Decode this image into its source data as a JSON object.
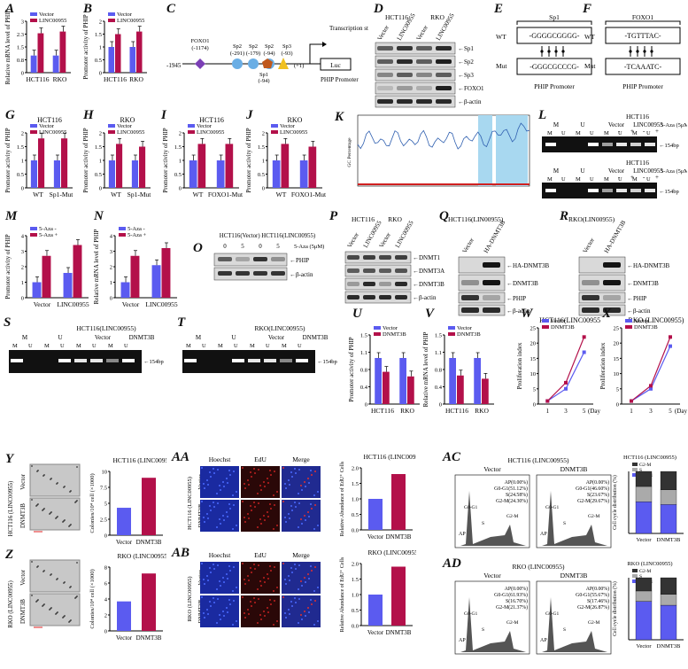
{
  "panels": {
    "A": {
      "label": "A",
      "ylabel": "Relative mRNA level of PHIP",
      "categories": [
        "HCT116",
        "RKO"
      ],
      "legend": [
        "Vector",
        "LINC00955"
      ],
      "values": [
        [
          1,
          2.3
        ],
        [
          1,
          2.4
        ]
      ],
      "ylim": [
        0,
        3
      ],
      "ticks": [
        "0",
        "1",
        "2",
        "3"
      ]
    },
    "B": {
      "label": "B",
      "ylabel": "Promoter activity of PHIP",
      "categories": [
        "HCT116",
        "RKO"
      ],
      "legend": [
        "Vector",
        "LINC00955"
      ],
      "values": [
        [
          1,
          1.5
        ],
        [
          1,
          1.6
        ]
      ],
      "ylim": [
        0,
        2
      ],
      "ticks": [
        "0.0",
        "0.5",
        "1.0",
        "1.5",
        "2.0"
      ]
    },
    "C": {
      "label": "C",
      "start": "-1945",
      "factors": [
        "FOXO1",
        "Sp2",
        "Sp2",
        "Sp2",
        "Sp3",
        "Sp1"
      ],
      "positions": [
        "(-1174)",
        "(-291)",
        "(-179)",
        "(-94)",
        "(-93)",
        "(-94)"
      ],
      "tss": "Transcription start site",
      "luc": "Luc",
      "promoter": "PHIP Promoter",
      "plus1": "(+1)"
    },
    "D": {
      "label": "D",
      "cells": [
        "HCT116",
        "RKO"
      ],
      "lanes": [
        "Vector",
        "LINC00955",
        "Vector",
        "LINC00955"
      ],
      "bands": [
        "Sp1",
        "Sp2",
        "Sp3",
        "FOXO1",
        "β-actin"
      ]
    },
    "E": {
      "label": "E",
      "title": "Sp1",
      "wt": "WT",
      "mut": "Mut",
      "wt_seq": "-GGGGCGGGG-",
      "mut_seq": "-GGGCGCCCG-",
      "caption": "PHIP Promoter"
    },
    "F": {
      "label": "F",
      "title": "FOXO1",
      "wt": "WT",
      "mut": "Mut",
      "wt_seq": "-TGTTTAC-",
      "mut_seq": "-TCAAATC-",
      "caption": "PHIP Promoter"
    },
    "G": {
      "label": "G",
      "title": "HCT116",
      "ylabel": "Promoter activity of PHIP",
      "categories": [
        "WT",
        "Sp1-Mut"
      ],
      "legend": [
        "Vector",
        "LINC00955"
      ],
      "values": [
        [
          1,
          1.8
        ],
        [
          1,
          1.8
        ]
      ],
      "ylim": [
        0,
        2
      ]
    },
    "H": {
      "label": "H",
      "title": "RKO",
      "ylabel": "Promoter activity of PHIP",
      "categories": [
        "WT",
        "Sp1-Mut"
      ],
      "legend": [
        "Vector",
        "LINC00955"
      ],
      "values": [
        [
          1,
          1.6
        ],
        [
          1,
          1.5
        ]
      ],
      "ylim": [
        0,
        2
      ]
    },
    "I": {
      "label": "I",
      "title": "HCT116",
      "ylabel": "Promoter activity of PHIP",
      "categories": [
        "WT",
        "FOXO1-Mut"
      ],
      "legend": [
        "Vector",
        "LINC00955"
      ],
      "values": [
        [
          1,
          1.6
        ],
        [
          1,
          1.6
        ]
      ],
      "ylim": [
        0,
        2
      ]
    },
    "J": {
      "label": "J",
      "title": "RKO",
      "ylabel": "Promoter activity of PHIP",
      "categories": [
        "WT",
        "FOXO1-Mut"
      ],
      "legend": [
        "Vector",
        "LINC00955"
      ],
      "values": [
        [
          1,
          1.6
        ],
        [
          1,
          1.5
        ]
      ],
      "ylim": [
        0,
        2
      ]
    },
    "K": {
      "label": "K",
      "ylabel": "GC Percentage"
    },
    "L": {
      "label": "L",
      "cell": "HCT116",
      "treat": "5-Aza (5μM)",
      "groups": [
        "M",
        "U",
        "Vector",
        "LINC00955"
      ],
      "mu": [
        "M",
        "U"
      ],
      "size": "154bp",
      "signs": [
        "-",
        "+",
        "-",
        "+"
      ]
    },
    "M": {
      "label": "M",
      "ylabel": "Promoter activity of PHIP",
      "categories": [
        "Vector",
        "LINC00955"
      ],
      "legend": [
        "5-Aza -",
        "5-Aza +"
      ],
      "values": [
        [
          1,
          2.7
        ],
        [
          1.6,
          3.4
        ]
      ],
      "ylim": [
        0,
        4
      ]
    },
    "N": {
      "label": "N",
      "ylabel": "Relative mRNA level of PHIP",
      "categories": [
        "Vector",
        "LINC00955"
      ],
      "legend": [
        "5-Aza -",
        "5-Aza +"
      ],
      "values": [
        [
          1,
          2.7
        ],
        [
          2.1,
          3.2
        ]
      ],
      "ylim": [
        0,
        4
      ]
    },
    "O": {
      "label": "O",
      "header": "HCT116(Vector) HCT116(LINC00955)",
      "doses": [
        "0",
        "5",
        "0",
        "5"
      ],
      "treat": "5-Aza (5μM)",
      "bands": [
        "PHIP",
        "β-actin"
      ]
    },
    "P": {
      "label": "P",
      "cells": [
        "HCT116",
        "RKO"
      ],
      "lanes": [
        "Vector",
        "LINC00955",
        "Vector",
        "LINC00955"
      ],
      "bands": [
        "DNMT1",
        "DNMT3A",
        "DNMT3B",
        "β-actin"
      ]
    },
    "Q": {
      "label": "Q",
      "title": "HCT116(LIN00955)",
      "lanes": [
        "Vector",
        "HA-DNMT3B"
      ],
      "bands": [
        "HA-DNMT3B",
        "DNMT3B",
        "PHIP",
        "β-actin"
      ]
    },
    "R": {
      "label": "R",
      "title": "RKO(LIN00955)",
      "lanes": [
        "Vector",
        "HA-DNMT3B"
      ],
      "bands": [
        "HA-DNMT3B",
        "DNMT3B",
        "PHIP",
        "β-actin"
      ]
    },
    "S": {
      "label": "S",
      "title": "HCT116(LINC00955)",
      "groups": [
        "M",
        "U",
        "Vector",
        "DNMT3B"
      ],
      "size": "154bp"
    },
    "T": {
      "label": "T",
      "title": "RKO(LINC00955)",
      "groups": [
        "M",
        "U",
        "Vector",
        "DNMT3B"
      ],
      "size": "154bp"
    },
    "U": {
      "label": "U",
      "ylabel": "Promoter activity of PHIP",
      "categories": [
        "HCT116",
        "RKO"
      ],
      "legend": [
        "Vector",
        "DNMT3B"
      ],
      "values": [
        [
          1,
          0.7
        ],
        [
          1,
          0.6
        ]
      ],
      "ylim": [
        0,
        1.5
      ]
    },
    "V": {
      "label": "V",
      "ylabel": "Relative mRNA level of PHIP",
      "categories": [
        "HCT116",
        "RKO"
      ],
      "legend": [
        "Vector",
        "DNMT3B"
      ],
      "values": [
        [
          1,
          0.62
        ],
        [
          1,
          0.55
        ]
      ],
      "ylim": [
        0,
        1.5
      ]
    },
    "W": {
      "label": "W",
      "title": "HCT116(LINC00955)",
      "ylabel": "Proliferation index",
      "xlabel": "(Day)",
      "x": [
        "1",
        "3",
        "5"
      ],
      "legend": [
        "Vector",
        "DNMT3B"
      ],
      "series": [
        [
          1,
          5,
          17
        ],
        [
          1,
          7,
          22
        ]
      ],
      "ylim": [
        0,
        25
      ]
    },
    "X": {
      "label": "X",
      "title": "RKO (LINC00955)",
      "ylabel": "Proliferation index",
      "xlabel": "(Day)",
      "x": [
        "1",
        "3",
        "5"
      ],
      "legend": [
        "Vector",
        "DNMT3B"
      ],
      "series": [
        [
          1,
          5,
          19
        ],
        [
          1,
          6,
          22
        ]
      ],
      "ylim": [
        0,
        25
      ]
    },
    "Y": {
      "label": "Y",
      "title": "HCT116 (LINC00955)",
      "rows": [
        "Vector",
        "DNMT3B"
      ],
      "side": "HCT116 (LINC00955)",
      "ylabel": "Colonies/10⁴ cell (×1000)",
      "categories": [
        "Vector",
        "DNMT3B"
      ],
      "values": [
        4.3,
        9.0
      ],
      "ylim": [
        0,
        10
      ]
    },
    "Z": {
      "label": "Z",
      "title": "RKO (LINC00955)",
      "rows": [
        "Vector",
        "DNMT3B"
      ],
      "side": "RKO (LINC00955)",
      "ylabel": "Colonies/10⁴ cell (×1000)",
      "categories": [
        "Vector",
        "DNMT3B"
      ],
      "values": [
        3.7,
        7.2
      ],
      "ylim": [
        0,
        8
      ]
    },
    "AA": {
      "label": "AA",
      "cols": [
        "Hoechst",
        "EdU",
        "Merge"
      ],
      "rows": [
        "Vector",
        "DNMT3B"
      ],
      "side": "HCT116 (LINC00955)",
      "title": "HCT116 (LINC00955)",
      "ylabel": "Relative Abundance of EdU⁺ Cells",
      "categories": [
        "Vector",
        "DNMT3B"
      ],
      "values": [
        1,
        1.8
      ],
      "ylim": [
        0,
        2
      ]
    },
    "AB": {
      "label": "AB",
      "cols": [
        "Hoechst",
        "EdU",
        "Merge"
      ],
      "rows": [
        "Vector",
        "DNMT3B"
      ],
      "side": "RKO (LINC00955)",
      "title": "RKO (LINC00955)",
      "ylabel": "Relative Abundance of EdU⁺ Cells",
      "categories": [
        "Vector",
        "DNMT3B"
      ],
      "values": [
        1,
        1.9
      ],
      "ylim": [
        0,
        2
      ]
    },
    "AC": {
      "label": "AC",
      "title": "HCT116 (LINC00955)",
      "cols": [
        "Vector",
        "DNMT3B"
      ],
      "stats": [
        [
          "AP(0.00%)",
          "G0-G1(51.12%)",
          "S(24.58%)",
          "G2-M(24.30%)"
        ],
        [
          "AP(0.00%)",
          "G0-G1(46.60%)",
          "S(23.67%)",
          "G2-M(29.67%)"
        ]
      ],
      "ylabel": "Cell cycle distribution (%)",
      "legend": [
        "G2-M",
        "S",
        "G0-G1"
      ],
      "categories": [
        "Vector",
        "DNMT3B"
      ]
    },
    "AD": {
      "label": "AD",
      "title": "RKO (LINC00955)",
      "cols": [
        "Vector",
        "DNMT3B"
      ],
      "stats": [
        [
          "AP(0.00%)",
          "G0-G1(61.93%)",
          "S(16.70%)",
          "G2-M(21.37%)"
        ],
        [
          "AP(0.00%)",
          "G0-G1(55.67%)",
          "S(17.46%)",
          "G2-M(26.87%)"
        ]
      ],
      "ylabel": "Cell cycle distribution (%)",
      "legend": [
        "G2-M",
        "S",
        "G0-G1"
      ],
      "categories": [
        "Vector",
        "DNMT3B"
      ]
    }
  },
  "colors": {
    "blue": "#5b5bf0",
    "red": "#b3104a",
    "dark": "#222222"
  }
}
